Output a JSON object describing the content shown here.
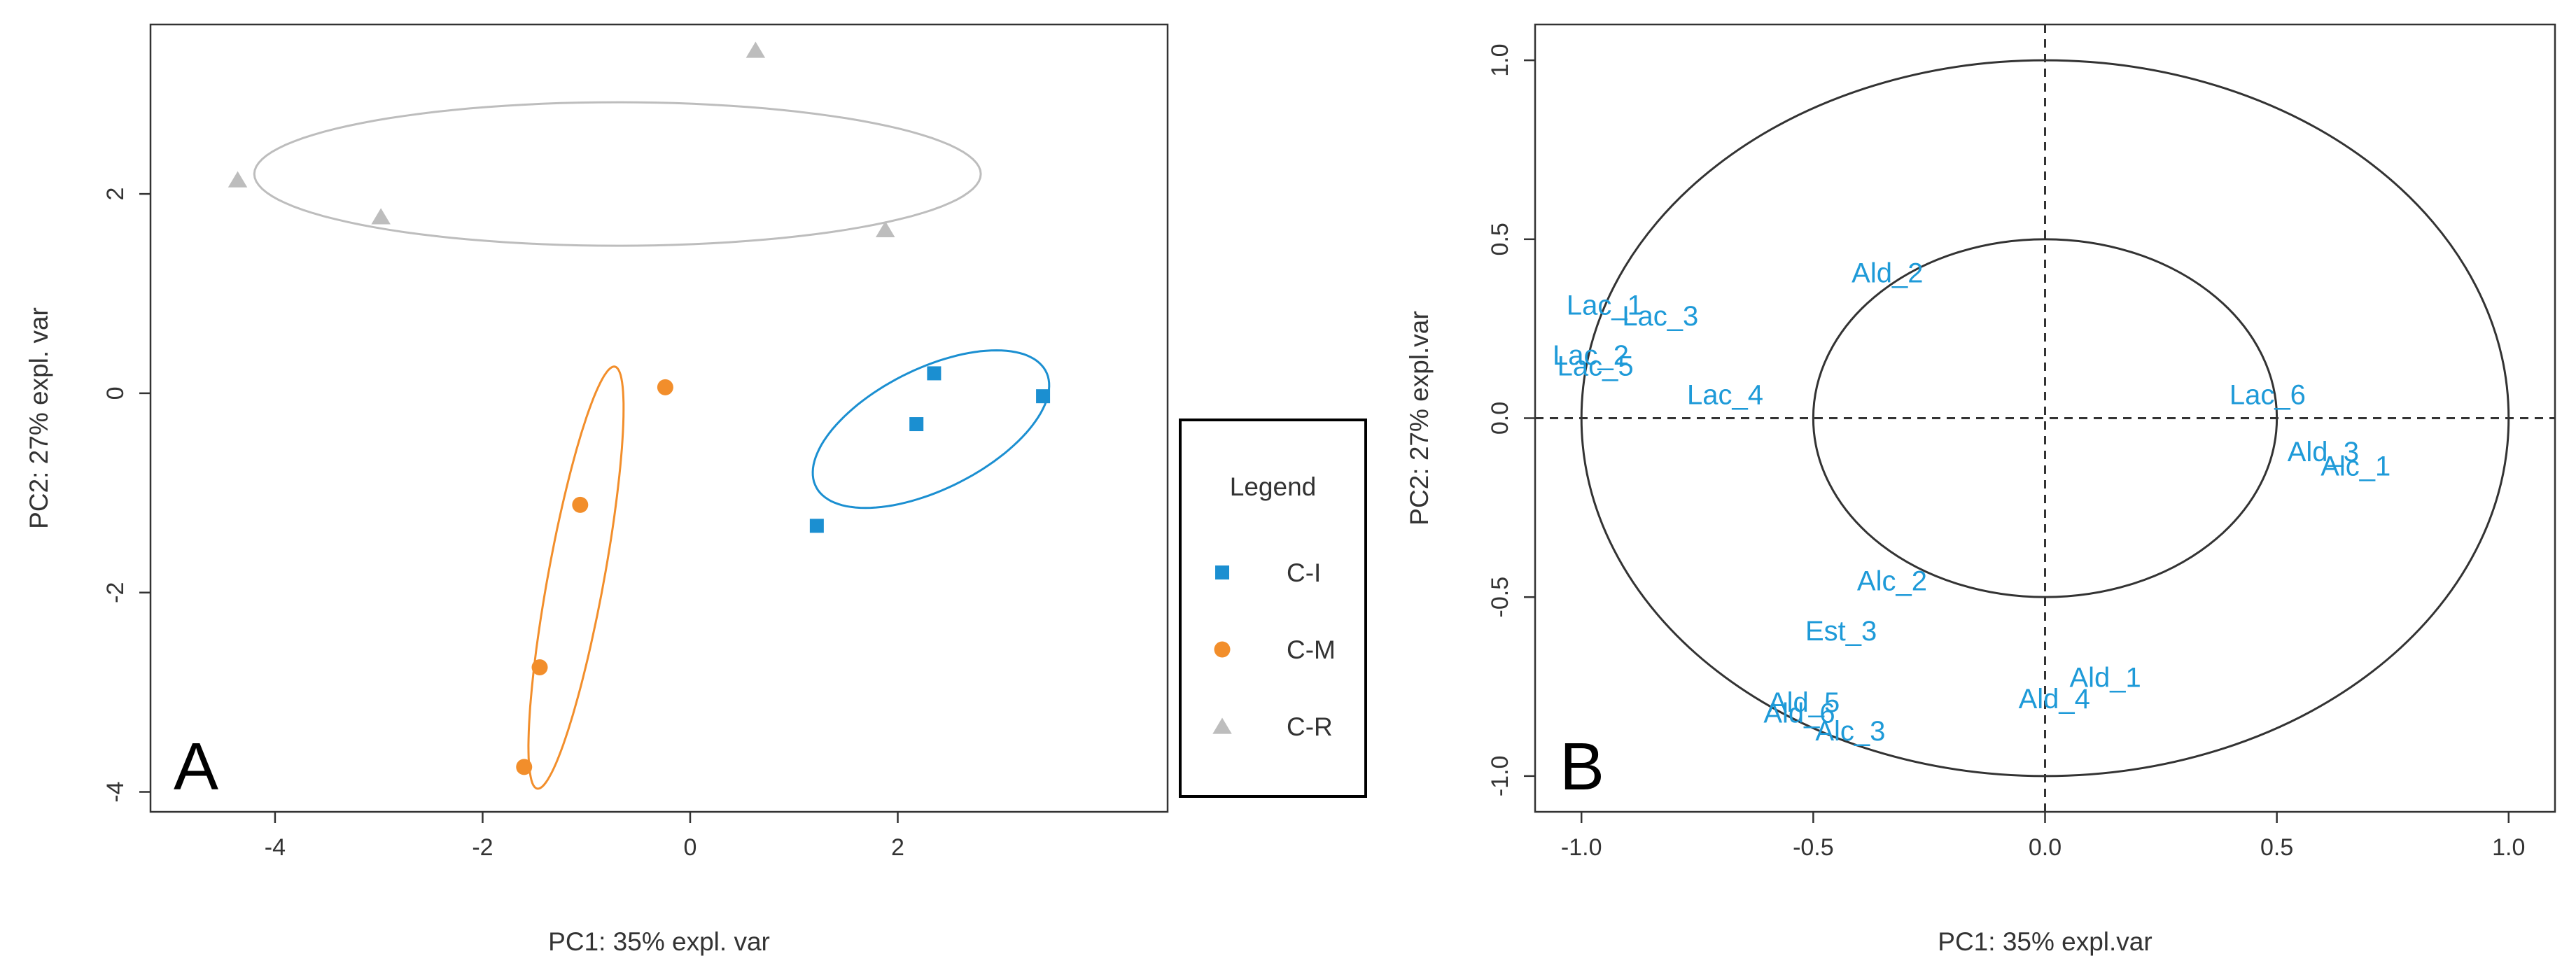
{
  "colors": {
    "C-I": "#1b8fd1",
    "C-M": "#f28e2b",
    "C-R": "#bdbdbd",
    "var_label": "#1e9ad8",
    "axis": "#333333"
  },
  "chart_data": [
    {
      "type": "scatter",
      "panel": "A",
      "title": "",
      "xlabel": "PC1: 35% expl. var",
      "ylabel": "PC2: 27% expl. var",
      "xlim": [
        -5.2,
        4.6
      ],
      "ylim": [
        -4.2,
        3.7
      ],
      "xticks": [
        -4,
        -2,
        0,
        2
      ],
      "yticks": [
        -4,
        -2,
        0,
        2
      ],
      "legend": {
        "title": "Legend",
        "placement": "right",
        "entries": [
          {
            "name": "C-I",
            "marker": "square"
          },
          {
            "name": "C-M",
            "marker": "circle"
          },
          {
            "name": "C-R",
            "marker": "triangle"
          }
        ]
      },
      "series": [
        {
          "name": "C-I",
          "marker": "square",
          "points": [
            [
              1.22,
              -1.33
            ],
            [
              2.18,
              -0.31
            ],
            [
              2.35,
              0.2
            ],
            [
              3.4,
              -0.03
            ]
          ],
          "ellipse": {
            "cx": 2.32,
            "cy": -0.36,
            "rx": 1.25,
            "ry": 0.6,
            "angle_deg": 28
          }
        },
        {
          "name": "C-M",
          "marker": "circle",
          "points": [
            [
              -0.24,
              0.06
            ],
            [
              -1.06,
              -1.12
            ],
            [
              -1.45,
              -2.75
            ],
            [
              -1.6,
              -3.75
            ]
          ],
          "ellipse": {
            "cx": -1.1,
            "cy": -1.85,
            "rx": 2.15,
            "ry": 0.27,
            "angle_deg": 80
          }
        },
        {
          "name": "C-R",
          "marker": "triangle",
          "points": [
            [
              -4.36,
              2.14
            ],
            [
              -2.98,
              1.77
            ],
            [
              0.63,
              3.44
            ],
            [
              1.88,
              1.64
            ]
          ],
          "ellipse": {
            "cx": -0.7,
            "cy": 2.2,
            "rx": 3.5,
            "ry": 0.72,
            "angle_deg": 0
          }
        }
      ]
    },
    {
      "type": "scatter",
      "panel": "B",
      "subtype": "correlation-circle",
      "title": "",
      "xlabel": "PC1: 35% expl.var",
      "ylabel": "PC2: 27% expl.var",
      "xlim": [
        -1.1,
        1.1
      ],
      "ylim": [
        -1.1,
        1.1
      ],
      "xticks": [
        "-1.0",
        "-0.5",
        "0.0",
        "0.5",
        "1.0"
      ],
      "yticks": [
        "-1.0",
        "-0.5",
        "0.0",
        "0.5",
        "1.0"
      ],
      "circles": [
        1.0,
        0.5
      ],
      "variables": [
        {
          "name": "Ald_2",
          "x": -0.34,
          "y": 0.4
        },
        {
          "name": "Lac_1",
          "x": -0.95,
          "y": 0.31
        },
        {
          "name": "Lac_3",
          "x": -0.83,
          "y": 0.28
        },
        {
          "name": "Lac_2",
          "x": -0.98,
          "y": 0.17
        },
        {
          "name": "Lac_5",
          "x": -0.97,
          "y": 0.14
        },
        {
          "name": "Lac_4",
          "x": -0.69,
          "y": 0.06
        },
        {
          "name": "Lac_6",
          "x": 0.48,
          "y": 0.06
        },
        {
          "name": "Ald_3",
          "x": 0.6,
          "y": -0.1
        },
        {
          "name": "Alc_1",
          "x": 0.67,
          "y": -0.14
        },
        {
          "name": "Alc_2",
          "x": -0.33,
          "y": -0.46
        },
        {
          "name": "Est_3",
          "x": -0.44,
          "y": -0.6
        },
        {
          "name": "Ald_1",
          "x": 0.13,
          "y": -0.73
        },
        {
          "name": "Ald_4",
          "x": 0.02,
          "y": -0.79
        },
        {
          "name": "Ald_5",
          "x": -0.52,
          "y": -0.8
        },
        {
          "name": "Ald_6",
          "x": -0.53,
          "y": -0.83
        },
        {
          "name": "Alc_3",
          "x": -0.42,
          "y": -0.88
        }
      ]
    }
  ]
}
